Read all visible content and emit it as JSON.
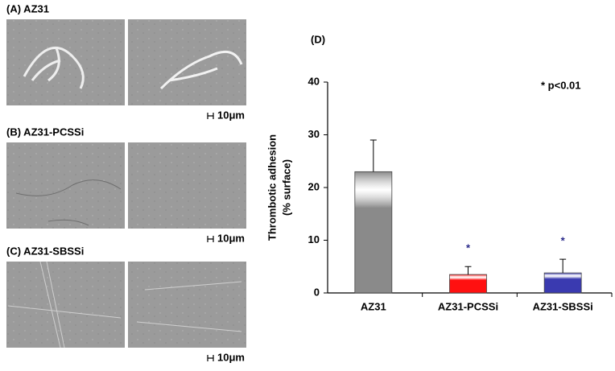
{
  "panels": [
    {
      "label": "(A) AZ31",
      "scale_bar": "10μm"
    },
    {
      "label": "(B) AZ31-PCSSi",
      "scale_bar": "10μm"
    },
    {
      "label": "(C) AZ31-SBSSi",
      "scale_bar": "10μm"
    }
  ],
  "chart_data": {
    "type": "bar",
    "title": "(D)",
    "ylabel": [
      "Thrombotic adhesion",
      "(% surface)"
    ],
    "annotation": "* p<0.01",
    "categories": [
      "AZ31",
      "AZ31-PCSSi",
      "AZ31-SBSSi"
    ],
    "values": [
      23,
      3.5,
      3.8
    ],
    "errors": [
      6,
      1.5,
      2.6
    ],
    "colors": [
      "#8a8a8a",
      "#ff1010",
      "#3a3ab0"
    ],
    "significance": [
      {
        "category": "AZ31-PCSSi",
        "label": "*"
      },
      {
        "category": "AZ31-SBSSi",
        "label": "*"
      }
    ],
    "ylim": [
      0,
      40
    ],
    "yticks": [
      0,
      10,
      20,
      30,
      40
    ]
  }
}
